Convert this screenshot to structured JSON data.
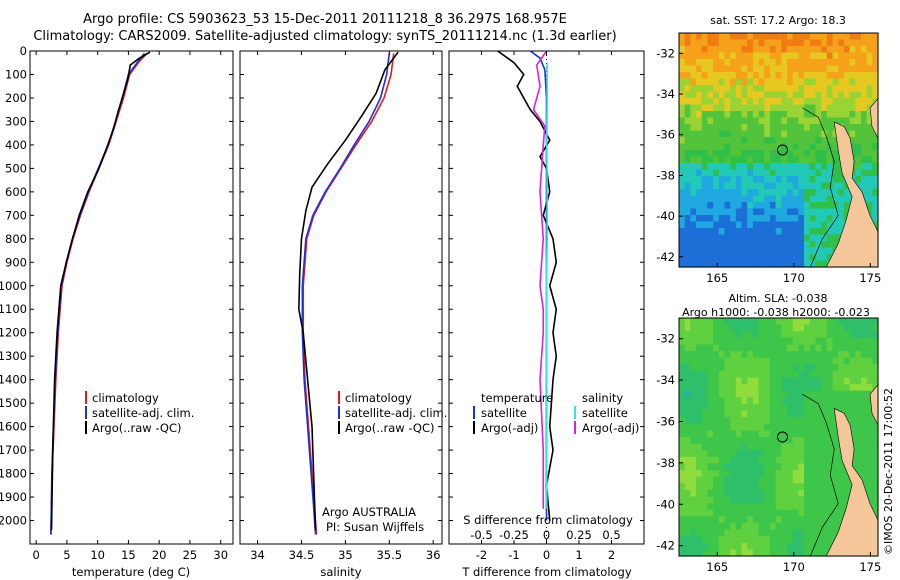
{
  "titles": {
    "line1": "Argo profile: CS 5903623_53 15-Dec-2011 20111218_8 36.297S 168.957E",
    "line2": "Climatology: CARS2009. Satellite-adjusted climatology: synTS_20111214.nc (1.3d earlier)"
  },
  "colors": {
    "climatology": "#e41a1c",
    "satellite": "#1f2fd8",
    "argo": "#000000",
    "satellite_salinity": "#2ee6e6",
    "argo_salinity": "#e01fd8"
  },
  "chart_data": [
    {
      "type": "line",
      "panel": "temperature",
      "xlabel": "temperature (deg C)",
      "ylabel": "",
      "xlim": [
        -1,
        32
      ],
      "ylim": [
        2100,
        0
      ],
      "xticks": [
        0,
        5,
        10,
        15,
        20,
        25,
        30
      ],
      "yticks": [
        0,
        100,
        200,
        300,
        400,
        500,
        600,
        700,
        800,
        900,
        1000,
        1100,
        1200,
        1300,
        1400,
        1500,
        1600,
        1700,
        1800,
        1900,
        2000
      ],
      "legend": [
        "climatology",
        "satellite-adj. clim.",
        "Argo(..raw -QC)"
      ],
      "series": [
        {
          "name": "climatology",
          "color_key": "climatology",
          "x": [
            18,
            16.6,
            15.2,
            14.2,
            13.0,
            11.8,
            10.2,
            8.6,
            7.2,
            6.0,
            5.0,
            4.2,
            3.6,
            3.2,
            2.9,
            2.6,
            2.4
          ],
          "y": [
            10,
            50,
            100,
            200,
            300,
            400,
            500,
            600,
            700,
            800,
            900,
            1000,
            1200,
            1400,
            1600,
            1800,
            2060
          ]
        },
        {
          "name": "satellite-adj. clim.",
          "color_key": "satellite",
          "x": [
            17.6,
            16.4,
            15.0,
            14.0,
            12.9,
            11.7,
            10.1,
            8.5,
            7.1,
            5.9,
            4.9,
            4.1,
            3.5,
            3.1,
            2.8,
            2.55,
            2.4
          ],
          "y": [
            10,
            50,
            100,
            200,
            300,
            400,
            500,
            600,
            700,
            800,
            900,
            1000,
            1200,
            1400,
            1600,
            1800,
            2060
          ]
        },
        {
          "name": "Argo(..raw -QC)",
          "color_key": "argo",
          "x": [
            18.5,
            16.8,
            15.3,
            14.9,
            14.0,
            13.3,
            12.6,
            11.5,
            10.2,
            8.4,
            7.0,
            5.9,
            4.9,
            4.0,
            3.4,
            3.0,
            2.7,
            2.5
          ],
          "y": [
            5,
            30,
            60,
            120,
            200,
            260,
            330,
            410,
            500,
            600,
            700,
            800,
            900,
            1000,
            1200,
            1400,
            1700,
            2040
          ]
        }
      ]
    },
    {
      "type": "line",
      "panel": "salinity",
      "xlabel": "salinity",
      "ylabel": "",
      "xlim": [
        33.8,
        36.1
      ],
      "ylim": [
        2100,
        0
      ],
      "xticks": [
        34,
        34.5,
        35,
        35.5,
        36
      ],
      "legend": [
        "climatology",
        "satellite-adj. clim.",
        "Argo(..raw -QC)"
      ],
      "annotations": [
        "Argo AUSTRALIA",
        "PI: Susan Wijffels"
      ],
      "series": [
        {
          "name": "climatology",
          "color_key": "climatology",
          "x": [
            35.55,
            35.52,
            35.44,
            35.3,
            35.12,
            34.95,
            34.78,
            34.64,
            34.56,
            34.52,
            34.52,
            34.54,
            34.58,
            34.62,
            34.65,
            34.67
          ],
          "y": [
            10,
            100,
            200,
            300,
            400,
            500,
            600,
            700,
            800,
            1000,
            1200,
            1400,
            1600,
            1800,
            1950,
            2060
          ]
        },
        {
          "name": "satellite-adj. clim.",
          "color_key": "satellite",
          "x": [
            35.5,
            35.47,
            35.4,
            35.27,
            35.1,
            34.94,
            34.77,
            34.63,
            34.55,
            34.51,
            34.51,
            34.53,
            34.57,
            34.61,
            34.64,
            34.66
          ],
          "y": [
            10,
            100,
            200,
            300,
            400,
            500,
            600,
            700,
            800,
            1000,
            1200,
            1400,
            1600,
            1800,
            1950,
            2060
          ]
        },
        {
          "name": "Argo(..raw -QC)",
          "color_key": "argo",
          "x": [
            35.6,
            35.45,
            35.35,
            35.18,
            35.0,
            34.8,
            34.62,
            34.55,
            34.5,
            34.48,
            34.47,
            34.52,
            34.57,
            34.62,
            34.66
          ],
          "y": [
            5,
            80,
            180,
            280,
            380,
            480,
            580,
            680,
            800,
            950,
            1100,
            1200,
            1400,
            1600,
            2040
          ]
        }
      ]
    },
    {
      "type": "line",
      "panel": "difference",
      "xlabel": "T difference from climatology",
      "ylabel": "",
      "xlim": [
        -3,
        3
      ],
      "ylim": [
        2100,
        0
      ],
      "xticks": [
        -2,
        -1,
        0,
        1,
        2
      ],
      "secondary_x_label": "S difference from climatology",
      "secondary_xticks": [
        "-0.5",
        "-0.25",
        "0",
        "0.25",
        "0.5"
      ],
      "legend_headers": [
        "temperature",
        "salinity"
      ],
      "legend": [
        "satellite",
        "Argo(-adj)",
        "satellite",
        "Argo(-adj)"
      ],
      "series": [
        {
          "name": "satellite",
          "color_key": "satellite",
          "x": [
            -0.5,
            -0.2,
            -0.05,
            0.0,
            0.0,
            0.0,
            0.0,
            0.0
          ],
          "y": [
            0,
            30,
            80,
            200,
            400,
            800,
            1400,
            2000
          ]
        },
        {
          "name": "Argo(-adj)",
          "color_key": "argo",
          "x": [
            -1.5,
            -1.0,
            -0.7,
            -0.9,
            -0.5,
            -0.2,
            0.1,
            -0.2,
            0.0,
            0.1,
            -0.1,
            0.2,
            0.3,
            0.1,
            0.3,
            0.2,
            0.3,
            0.2,
            0.1,
            0.2,
            0.0,
            0.1
          ],
          "y": [
            0,
            50,
            100,
            150,
            250,
            300,
            380,
            450,
            500,
            600,
            700,
            800,
            900,
            1000,
            1100,
            1200,
            1300,
            1400,
            1600,
            1700,
            1850,
            2000
          ]
        },
        {
          "name": "satellite",
          "color_key": "satellite_salinity",
          "x": [
            0.02,
            0.02,
            0.01,
            0.02,
            0.02,
            0.0,
            0.0,
            0.01,
            0.01
          ],
          "y": [
            50,
            200,
            400,
            600,
            800,
            1000,
            1200,
            1500,
            1950
          ]
        },
        {
          "name": "Argo(-adj)",
          "color_key": "argo_salinity",
          "x": [
            0.0,
            -0.3,
            -0.2,
            -0.4,
            -0.05,
            -0.1,
            -0.2,
            -0.1,
            -0.2,
            -0.1,
            -0.1,
            -0.2,
            -0.1,
            -0.1
          ],
          "y": [
            0,
            60,
            150,
            250,
            320,
            400,
            600,
            800,
            1000,
            1100,
            1200,
            1400,
            1700,
            1950
          ]
        }
      ]
    },
    {
      "type": "heatmap",
      "panel": "sst_map",
      "title": "sat. SST: 17.2  Argo: 18.3",
      "xticks": [
        165,
        170,
        175
      ],
      "yticks": [
        -32,
        -34,
        -36,
        -38,
        -40,
        -42
      ]
    },
    {
      "type": "heatmap",
      "panel": "sla_map",
      "title": "Altim. SLA: -0.038",
      "subtitle": "Argo h1000: -0.038 h2000: -0.023",
      "xticks": [
        165,
        170,
        175
      ],
      "yticks": [
        -32,
        -34,
        -36,
        -38,
        -40,
        -42
      ]
    }
  ],
  "credit": "©IMOS 20-Dec-2011 17:00:52"
}
